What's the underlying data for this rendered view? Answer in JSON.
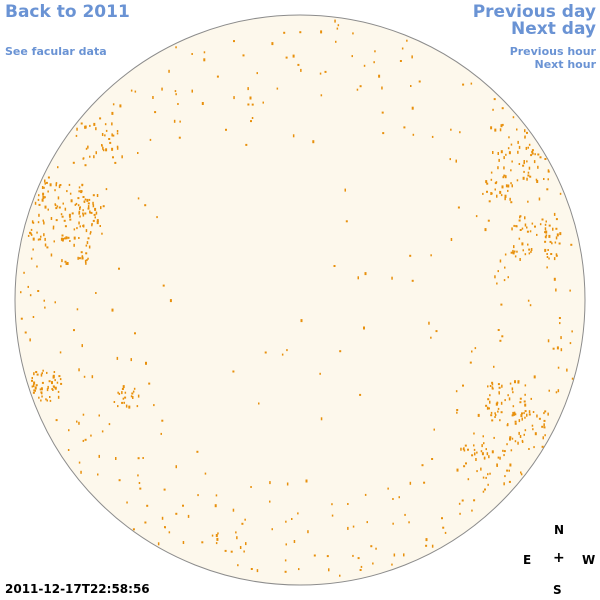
{
  "nav": {
    "back_label": "Back to 2011",
    "facular_label": "See facular data",
    "prev_day_label": "Previous day",
    "next_day_label": "Next day",
    "prev_hour_label": "Previous hour",
    "next_hour_label": "Next hour"
  },
  "compass": {
    "north": "N",
    "south": "S",
    "east": "E",
    "west": "W",
    "center": "+"
  },
  "timestamp": "2011-12-17T22:58:56",
  "colors": {
    "link": "#6a93d4",
    "disk_fill": "#fdf8ec",
    "disk_stroke": "#8c8c8c",
    "facula": "#e8900c"
  }
}
